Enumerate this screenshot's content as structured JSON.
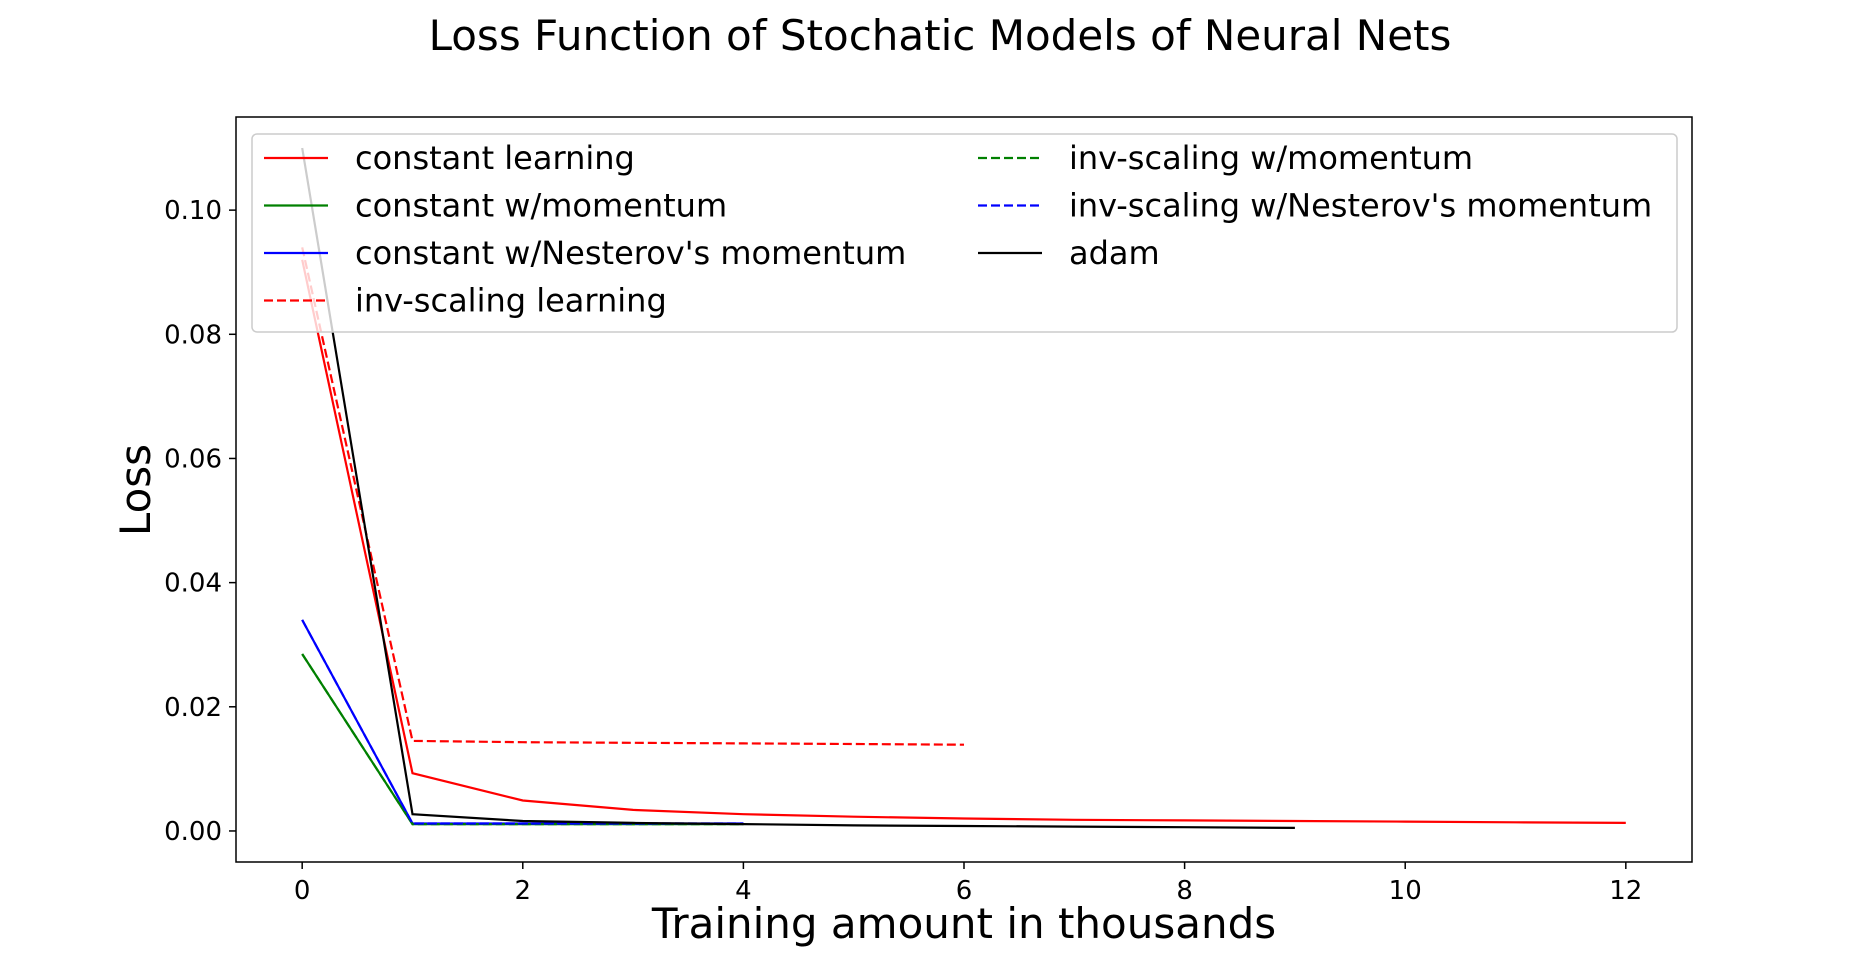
{
  "chart_data": {
    "type": "line",
    "title": "Loss Function of Stochatic Models of Neural Nets",
    "xlabel": "Training amount in thousands",
    "ylabel": "Loss",
    "xlim": [
      -0.6,
      12.6
    ],
    "ylim": [
      -0.005,
      0.115
    ],
    "xticks": [
      0,
      2,
      4,
      6,
      8,
      10,
      12
    ],
    "yticks": [
      0.0,
      0.02,
      0.04,
      0.06,
      0.08,
      0.1
    ],
    "xtick_labels": [
      "0",
      "2",
      "4",
      "6",
      "8",
      "10",
      "12"
    ],
    "ytick_labels": [
      "0.00",
      "0.02",
      "0.04",
      "0.06",
      "0.08",
      "0.10"
    ],
    "grid": false,
    "legend_position": "top",
    "legend_columns": 2,
    "series": [
      {
        "name": "constant learning",
        "color": "#ff0000",
        "dash": "solid",
        "x": [
          0,
          1,
          2,
          3,
          4,
          5,
          6,
          7,
          8,
          9,
          10,
          11,
          12
        ],
        "y": [
          0.092,
          0.0093,
          0.0049,
          0.0034,
          0.0027,
          0.0023,
          0.002,
          0.0018,
          0.0017,
          0.0016,
          0.0015,
          0.0014,
          0.0013
        ]
      },
      {
        "name": "constant w/momentum",
        "color": "#008000",
        "dash": "solid",
        "x": [
          0,
          1,
          2,
          3,
          4
        ],
        "y": [
          0.0285,
          0.0011,
          0.0011,
          0.0011,
          0.0011
        ]
      },
      {
        "name": "constant w/Nesterov's momentum",
        "color": "#0000ff",
        "dash": "solid",
        "x": [
          0,
          1,
          2,
          3,
          4
        ],
        "y": [
          0.034,
          0.0012,
          0.0012,
          0.0012,
          0.0012
        ]
      },
      {
        "name": "inv-scaling learning",
        "color": "#ff0000",
        "dash": "dashed",
        "x": [
          0,
          1,
          2,
          3,
          4,
          5,
          6
        ],
        "y": [
          0.094,
          0.0145,
          0.0143,
          0.0142,
          0.0141,
          0.014,
          0.0139
        ]
      },
      {
        "name": "inv-scaling w/momentum",
        "color": "#008000",
        "dash": "dashed",
        "x": [
          0,
          1,
          2,
          3,
          4
        ],
        "y": [
          0.0285,
          0.0011,
          0.0011,
          0.0011,
          0.0011
        ]
      },
      {
        "name": "inv-scaling w/Nesterov's momentum",
        "color": "#0000ff",
        "dash": "dashed",
        "x": [
          0,
          1,
          2,
          3,
          4
        ],
        "y": [
          0.034,
          0.0012,
          0.0012,
          0.0012,
          0.0012
        ]
      },
      {
        "name": "adam",
        "color": "#000000",
        "dash": "solid",
        "x": [
          0,
          1,
          2,
          3,
          4,
          5,
          6,
          7,
          8,
          9
        ],
        "y": [
          0.11,
          0.0027,
          0.0016,
          0.0013,
          0.0011,
          0.0009,
          0.0008,
          0.0007,
          0.0006,
          0.0005
        ]
      }
    ]
  }
}
